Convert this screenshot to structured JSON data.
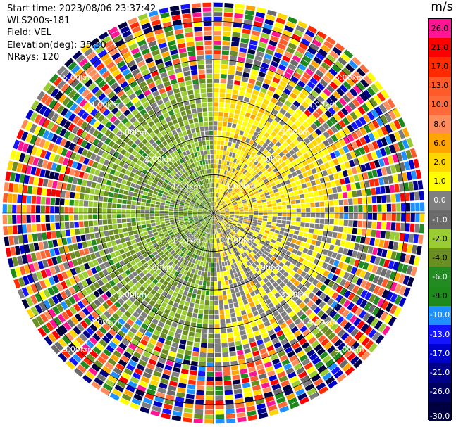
{
  "header": {
    "start_time": "Start time: 2023/08/06 23:37:42",
    "device": "WLS200s-181",
    "field": "Field: VEL",
    "elevation": "Elevation(deg): 35.30",
    "nrays": "NRays: 120"
  },
  "colorbar": {
    "unit": "m/s",
    "levels": [
      "26.0",
      "21.0",
      "17.0",
      "13.0",
      "10.0",
      "8.0",
      "6.0",
      "2.0",
      "1.0",
      "0.0",
      "-1.0",
      "-2.0",
      "-4.0",
      "-6.0",
      "-8.0",
      "-10.0",
      "-13.0",
      "-17.0",
      "-21.0",
      "-26.0",
      "-30.0"
    ],
    "colors": [
      "#ff1493",
      "#ff0000",
      "#ff2a00",
      "#ff5a2a",
      "#ff6a3a",
      "#ff8c5a",
      "#ffa500",
      "#ffd700",
      "#ffff00",
      "#7f7f7f",
      "#6b6b6b",
      "#9acd32",
      "#6b8e23",
      "#228b22",
      "#1e8a1e",
      "#1e90ff",
      "#1414ff",
      "#0000cd",
      "#00008b",
      "#000060",
      "#000040"
    ]
  },
  "chart_data": {
    "type": "heatmap",
    "subtype": "polar-ppi",
    "field": "VEL",
    "unit": "m/s",
    "nrays": 120,
    "elevation_deg": 35.3,
    "range_rings_km": [
      "1.00km",
      "2.00km",
      "3.00km",
      "4.00km",
      "5.00km"
    ],
    "range_ring_values_km": [
      1,
      2,
      3,
      4,
      5
    ],
    "max_range_km": 5.5,
    "color_scale": {
      "levels": [
        26.0,
        21.0,
        17.0,
        13.0,
        10.0,
        8.0,
        6.0,
        2.0,
        1.0,
        0.0,
        -1.0,
        -2.0,
        -4.0,
        -6.0,
        -8.0,
        -10.0,
        -13.0,
        -17.0,
        -21.0,
        -26.0,
        -30.0
      ]
    },
    "sectors": [
      {
        "azimuth_range_deg": [
          0,
          90
        ],
        "near_range_value": 2.0,
        "description": "positive velocities (yellow/orange)"
      },
      {
        "azimuth_range_deg": [
          90,
          180
        ],
        "near_range_value": 1.0
      },
      {
        "azimuth_range_deg": [
          180,
          270
        ],
        "near_range_value": -2.0
      },
      {
        "azimuth_range_deg": [
          270,
          360
        ],
        "near_range_value": -2.0
      }
    ],
    "outer_noise_range_km": [
      4.0,
      5.5
    ]
  }
}
